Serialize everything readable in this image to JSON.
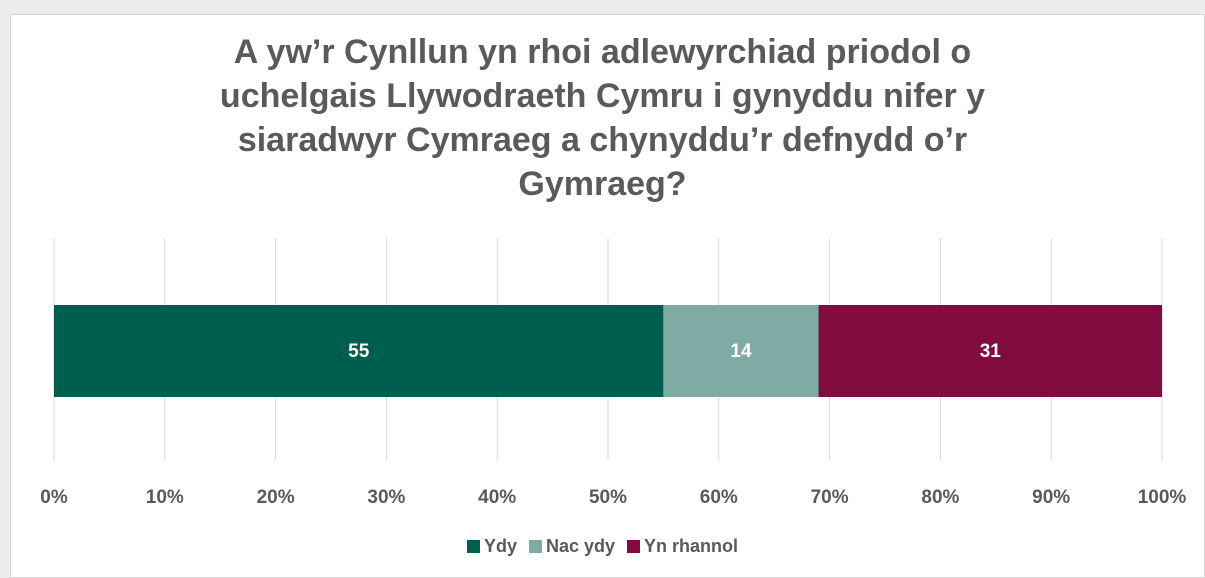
{
  "chart_data": {
    "type": "bar",
    "orientation": "horizontal",
    "stacked": true,
    "title_lines": [
      "A yw’r Cynllun yn rhoi adlewyrchiad priodol o",
      "uchelgais Llywodraeth Cymru i gynyddu nifer y",
      "siaradwyr Cymraeg a chynyddu’r defnydd o’r",
      "Gymraeg?"
    ],
    "categories": [
      ""
    ],
    "series": [
      {
        "name": "Ydy",
        "values": [
          55
        ],
        "color": "#005e4f"
      },
      {
        "name": "Nac ydy",
        "values": [
          14
        ],
        "color": "#80aba4"
      },
      {
        "name": "Yn rhannol",
        "values": [
          31
        ],
        "color": "#810b3f"
      }
    ],
    "xlim": [
      0,
      100
    ],
    "x_ticks": [
      "0%",
      "10%",
      "20%",
      "30%",
      "40%",
      "50%",
      "60%",
      "70%",
      "80%",
      "90%",
      "100%"
    ],
    "grid": true,
    "legend_position": "bottom"
  }
}
